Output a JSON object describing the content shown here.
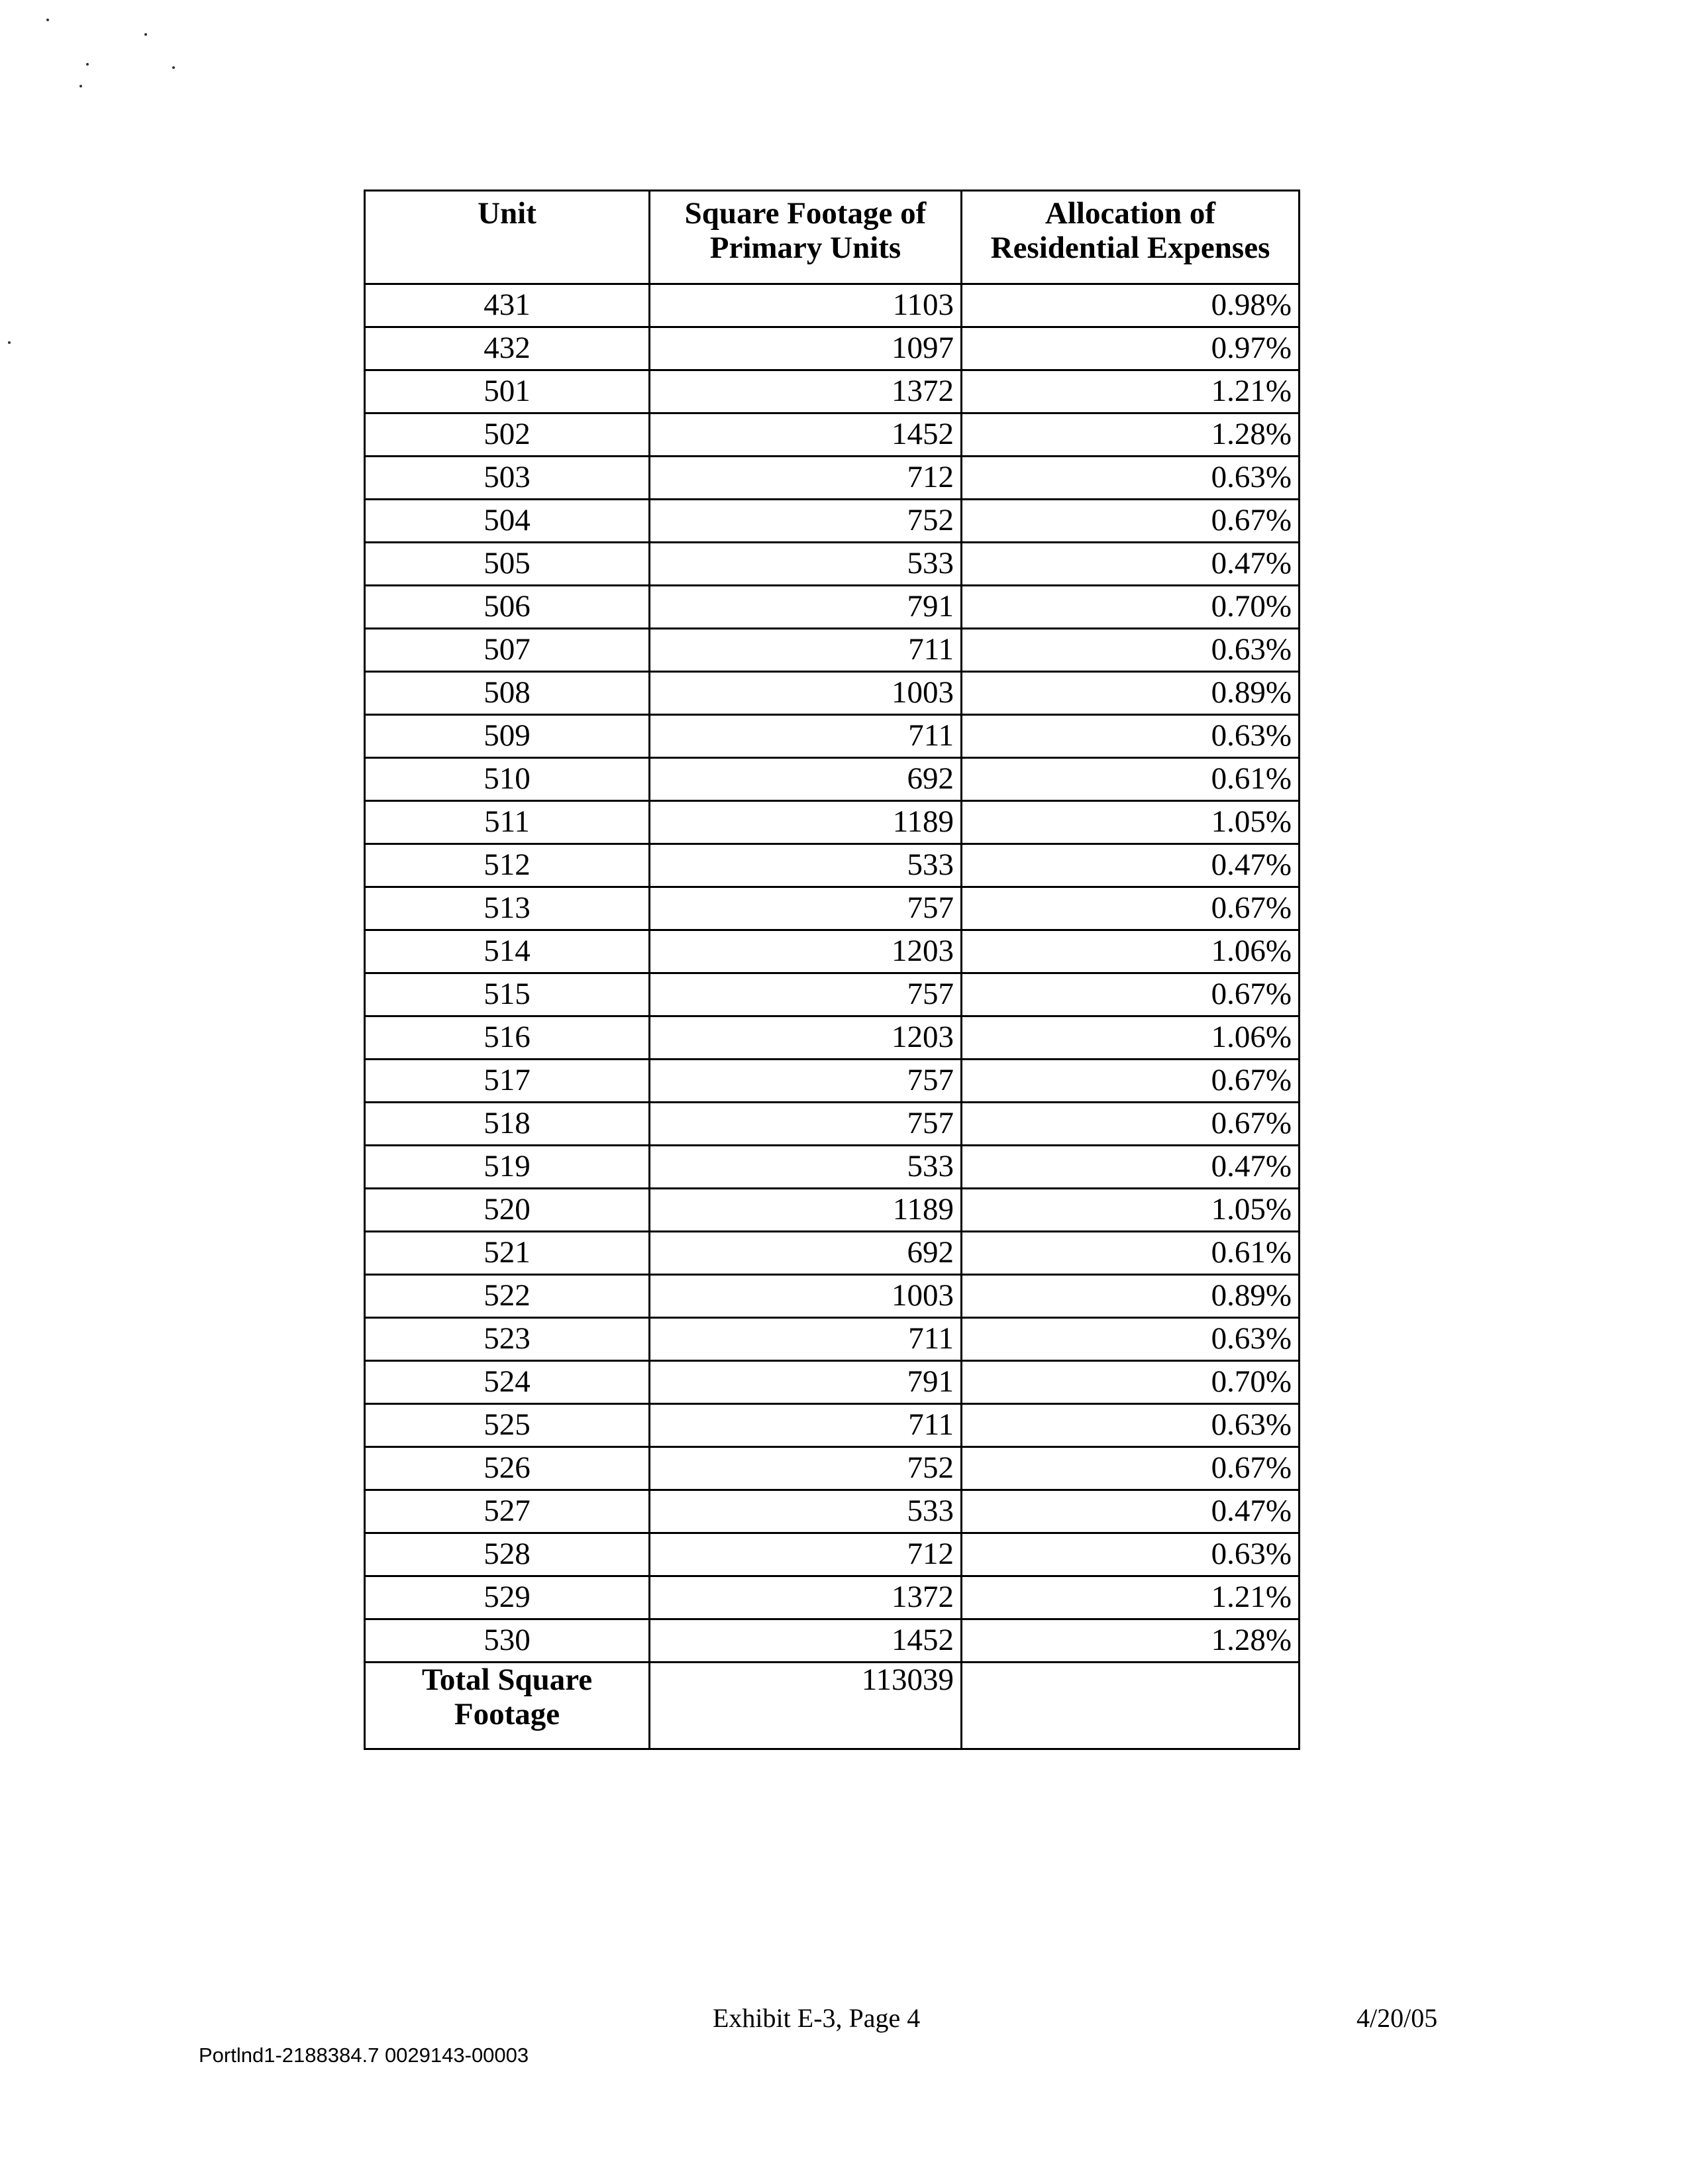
{
  "table": {
    "headers": [
      "Unit",
      "Square Footage of Primary Units",
      "Allocation of Residential Expenses"
    ],
    "rows": [
      [
        "431",
        "1103",
        "0.98%"
      ],
      [
        "432",
        "1097",
        "0.97%"
      ],
      [
        "501",
        "1372",
        "1.21%"
      ],
      [
        "502",
        "1452",
        "1.28%"
      ],
      [
        "503",
        "712",
        "0.63%"
      ],
      [
        "504",
        "752",
        "0.67%"
      ],
      [
        "505",
        "533",
        "0.47%"
      ],
      [
        "506",
        "791",
        "0.70%"
      ],
      [
        "507",
        "711",
        "0.63%"
      ],
      [
        "508",
        "1003",
        "0.89%"
      ],
      [
        "509",
        "711",
        "0.63%"
      ],
      [
        "510",
        "692",
        "0.61%"
      ],
      [
        "511",
        "1189",
        "1.05%"
      ],
      [
        "512",
        "533",
        "0.47%"
      ],
      [
        "513",
        "757",
        "0.67%"
      ],
      [
        "514",
        "1203",
        "1.06%"
      ],
      [
        "515",
        "757",
        "0.67%"
      ],
      [
        "516",
        "1203",
        "1.06%"
      ],
      [
        "517",
        "757",
        "0.67%"
      ],
      [
        "518",
        "757",
        "0.67%"
      ],
      [
        "519",
        "533",
        "0.47%"
      ],
      [
        "520",
        "1189",
        "1.05%"
      ],
      [
        "521",
        "692",
        "0.61%"
      ],
      [
        "522",
        "1003",
        "0.89%"
      ],
      [
        "523",
        "711",
        "0.63%"
      ],
      [
        "524",
        "791",
        "0.70%"
      ],
      [
        "525",
        "711",
        "0.63%"
      ],
      [
        "526",
        "752",
        "0.67%"
      ],
      [
        "527",
        "533",
        "0.47%"
      ],
      [
        "528",
        "712",
        "0.63%"
      ],
      [
        "529",
        "1372",
        "1.21%"
      ],
      [
        "530",
        "1452",
        "1.28%"
      ]
    ],
    "total": {
      "label": "Total Square Footage",
      "square_footage": "113039",
      "allocation": ""
    }
  },
  "footer": {
    "exhibit": "Exhibit E-3, Page 4",
    "date": "4/20/05",
    "doc_id": "Portlnd1-2188384.7 0029143-00003"
  }
}
